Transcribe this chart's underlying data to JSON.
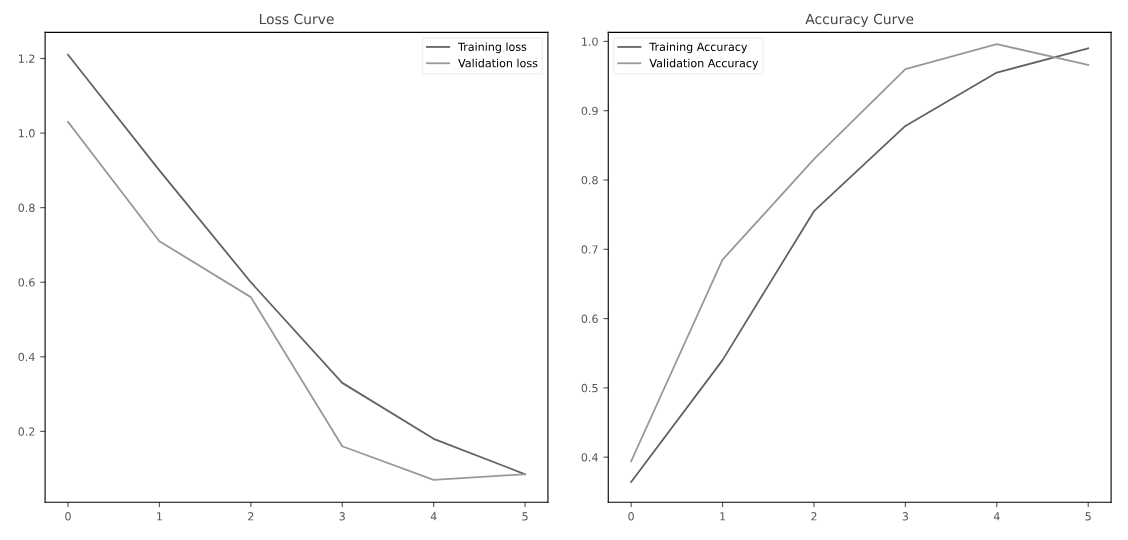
{
  "chart_data": [
    {
      "type": "line",
      "title": "Loss Curve",
      "x": [
        0,
        1,
        2,
        3,
        4,
        5
      ],
      "xlim": [
        -0.25,
        5.25
      ],
      "xticks": [
        0,
        1,
        2,
        3,
        4,
        5
      ],
      "ylim": [
        0.01,
        1.27
      ],
      "yticks": [
        0.2,
        0.4,
        0.6,
        0.8,
        {
          "value": 1,
          "label": "1.0"
        },
        1.2
      ],
      "legend": "upper right",
      "grid": false,
      "series": [
        {
          "name": "Training loss",
          "color": "#5f6468",
          "values": [
            1.21,
            0.9,
            0.6,
            0.33,
            0.18,
            0.085
          ]
        },
        {
          "name": "Validation loss",
          "color": "#979a97",
          "values": [
            1.03,
            0.71,
            0.56,
            0.16,
            0.07,
            0.085
          ]
        }
      ]
    },
    {
      "type": "line",
      "title": "Accuracy Curve",
      "x": [
        0,
        1,
        2,
        3,
        4,
        5
      ],
      "xlim": [
        -0.25,
        5.25
      ],
      "xticks": [
        0,
        1,
        2,
        3,
        4,
        5
      ],
      "ylim": [
        0.335,
        1.013
      ],
      "yticks": [
        0.4,
        0.5,
        0.6,
        0.7,
        0.8,
        0.9,
        {
          "value": 1,
          "label": "1.0"
        }
      ],
      "legend": "upper left",
      "grid": false,
      "series": [
        {
          "name": "Training Accuracy",
          "color": "#5f6468",
          "values": [
            0.364,
            0.54,
            0.755,
            0.878,
            0.955,
            0.99
          ]
        },
        {
          "name": "Validation Accuracy",
          "color": "#979a97",
          "values": [
            0.394,
            0.685,
            0.83,
            0.96,
            0.996,
            0.966
          ]
        }
      ]
    }
  ]
}
